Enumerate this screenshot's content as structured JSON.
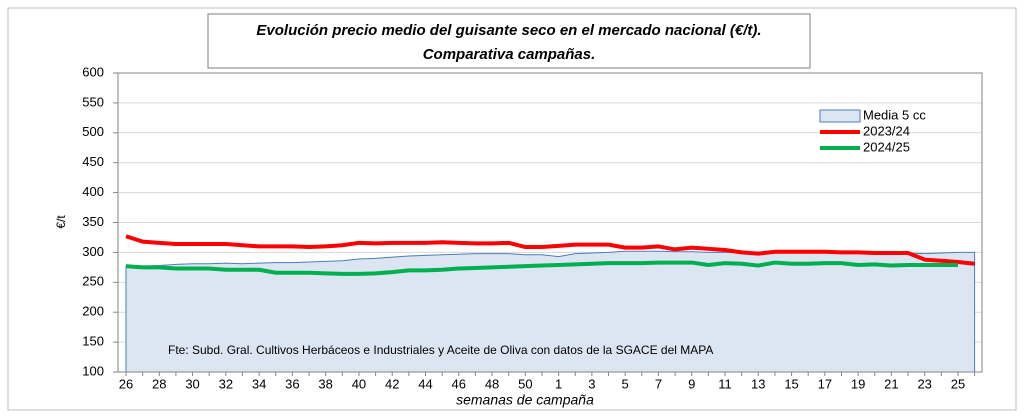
{
  "chart_data": {
    "type": "line",
    "title": [
      "Evolución precio medio del guisante seco en el mercado nacional (€/t).",
      "Comparativa campañas."
    ],
    "y_label": "€/t",
    "x_label": "semanas de campaña",
    "annotation": "Fte: Subd. Gral. Cultivos Herbáceos e Industriales y Aceite de Oliva con datos de la SGACE del MAPA",
    "categories": [
      26,
      null,
      28,
      null,
      30,
      null,
      32,
      null,
      34,
      null,
      36,
      null,
      38,
      null,
      40,
      null,
      42,
      null,
      44,
      null,
      46,
      null,
      48,
      null,
      50,
      null,
      1,
      null,
      3,
      null,
      5,
      null,
      7,
      null,
      9,
      null,
      11,
      null,
      13,
      null,
      15,
      null,
      17,
      null,
      19,
      null,
      21,
      null,
      23,
      null,
      25,
      null
    ],
    "series": [
      {
        "name": "Media 5 cc",
        "kind": "area",
        "color": "#dce6f2",
        "edge_color": "#4a7ebb",
        "values": [
          277,
          277,
          278,
          280,
          281,
          281,
          282,
          281,
          282,
          283,
          283,
          284,
          285,
          286,
          289,
          290,
          292,
          294,
          295,
          296,
          297,
          298,
          298,
          298,
          296,
          296,
          293,
          298,
          299,
          300,
          302,
          302,
          302,
          301,
          301,
          300,
          300,
          300,
          300,
          300,
          300,
          300,
          301,
          301,
          301,
          300,
          300,
          299,
          298,
          299,
          300,
          300
        ]
      },
      {
        "name": "2023/24",
        "kind": "line",
        "color": "#ff0000",
        "values": [
          327,
          318,
          316,
          314,
          314,
          314,
          314,
          312,
          310,
          310,
          310,
          309,
          310,
          312,
          316,
          315,
          316,
          316,
          316,
          317,
          316,
          315,
          315,
          316,
          309,
          309,
          311,
          313,
          313,
          313,
          308,
          308,
          310,
          305,
          308,
          306,
          304,
          300,
          298,
          301,
          301,
          301,
          301,
          300,
          300,
          299,
          299,
          299,
          288,
          286,
          284,
          281
        ]
      },
      {
        "name": "2024/25",
        "kind": "line",
        "color": "#00b050",
        "values": [
          277,
          275,
          275,
          273,
          273,
          273,
          271,
          271,
          271,
          266,
          266,
          266,
          265,
          264,
          264,
          265,
          267,
          270,
          270,
          271,
          273,
          274,
          275,
          276,
          277,
          278,
          279,
          280,
          281,
          282,
          282,
          282,
          283,
          283,
          283,
          279,
          282,
          281,
          278,
          283,
          281,
          281,
          282,
          282,
          279,
          280,
          278,
          279,
          279,
          279,
          279,
          null
        ]
      }
    ],
    "ylim": [
      100,
      600
    ],
    "yticks": [
      100,
      150,
      200,
      250,
      300,
      350,
      400,
      450,
      500,
      550,
      600
    ],
    "grid": true
  }
}
